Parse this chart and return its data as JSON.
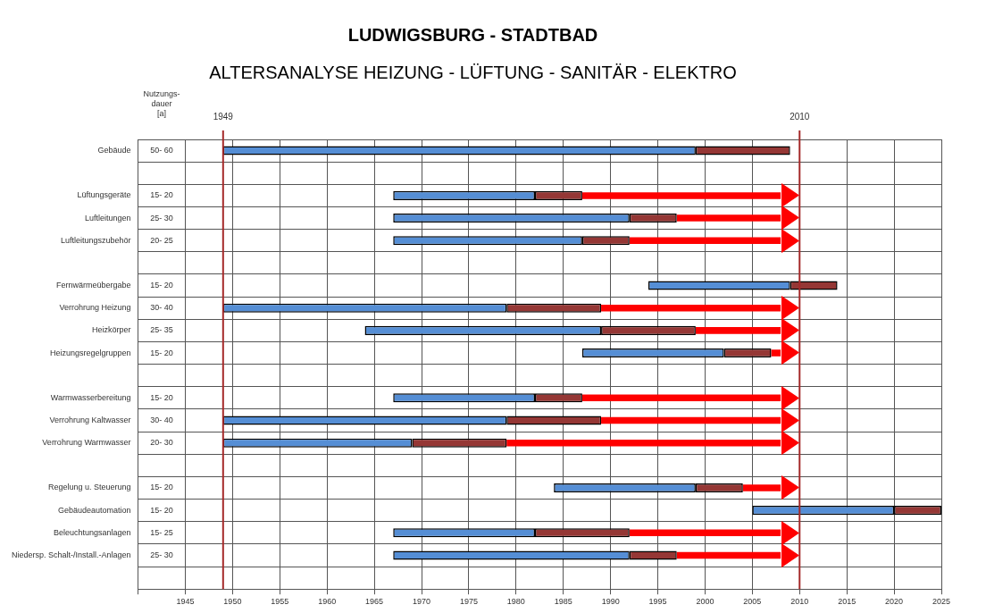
{
  "chart_data": {
    "type": "bar",
    "orientation": "horizontal",
    "title": "LUDWIGSBURG - STADTBAD",
    "subtitle": "ALTERSANALYSE HEIZUNG - LÜFTUNG - SANITÄR - ELEKTRO",
    "categories": [
      "Gebäude",
      null,
      "Lüftungsgeräte",
      "Luftleitungen",
      "Luftleitungszubehör",
      null,
      "Fernwärmeübergabe",
      "Verrohrung Heizung",
      "Heizkörper",
      "Heizungsregelgruppen",
      null,
      "Warmwasserbereitung",
      "Verrohrung Kaltwasser",
      "Verrohrung Warmwasser",
      null,
      "Regelung u. Steuerung",
      "Gebäudeautomation",
      "Beleuchtungsanlagen",
      "Niedersp. Schalt-/Install.-Anlagen",
      null
    ],
    "series": [
      {
        "color": "#558ed5",
        "base": [
          1949,
          null,
          1967,
          1967,
          1967,
          null,
          1994,
          1949,
          1964,
          1987,
          null,
          1967,
          1949,
          1949,
          null,
          1984,
          2005,
          1967,
          1967,
          null
        ],
        "values": [
          50,
          null,
          15,
          25,
          20,
          null,
          15,
          30,
          25,
          15,
          null,
          15,
          30,
          20,
          null,
          15,
          15,
          15,
          25,
          null
        ]
      },
      {
        "color": "#953735",
        "base": [
          1999,
          null,
          1982,
          1992,
          1987,
          null,
          2009,
          1979,
          1989,
          2002,
          null,
          1982,
          1979,
          1969,
          null,
          1999,
          2020,
          1982,
          1992,
          null
        ],
        "values": [
          10,
          null,
          5,
          5,
          5,
          null,
          5,
          10,
          10,
          5,
          null,
          5,
          10,
          10,
          null,
          5,
          5,
          10,
          5,
          null
        ]
      },
      {
        "color": "#ff0000",
        "marker": "triangle",
        "base": [
          null,
          null,
          1987,
          1997,
          1992,
          null,
          null,
          1989,
          1999,
          2007,
          null,
          1987,
          1989,
          1979,
          null,
          2004,
          null,
          1992,
          1997,
          null
        ],
        "values": [
          null,
          null,
          21,
          11,
          16,
          null,
          null,
          19,
          9,
          1,
          null,
          21,
          19,
          29,
          null,
          4,
          null,
          16,
          11,
          null
        ]
      }
    ],
    "xlim": [
      1940,
      2025
    ],
    "xticks": [
      {
        "value": 1940,
        "label": null
      },
      1945,
      1950,
      1955,
      1960,
      1965,
      1970,
      1975,
      1980,
      1985,
      1990,
      1995,
      2000,
      2005,
      2010,
      2015,
      2020,
      2025
    ],
    "ref_lines": [
      {
        "axis": "x",
        "value": 1949,
        "label": "1949",
        "color": "#a52a2a"
      },
      {
        "axis": "x",
        "value": 2010,
        "label": "2010",
        "color": "#a52a2a"
      }
    ],
    "annotations": [
      "Nutzungs-\ndauer\n[a]",
      "50- 60",
      "15- 20",
      "25- 30",
      "20- 25",
      "15- 20",
      "30- 40",
      "25- 35",
      "15- 20",
      "15- 20",
      "30- 40",
      "20- 30",
      "15- 20",
      "15- 20",
      "15- 25",
      "25- 30"
    ],
    "grid": true,
    "legend": false
  }
}
